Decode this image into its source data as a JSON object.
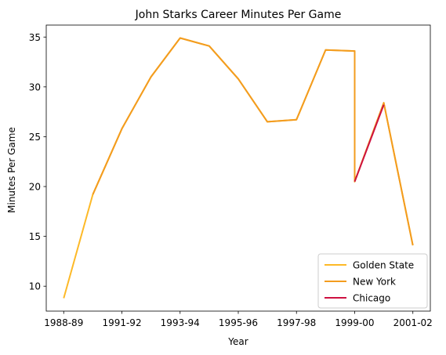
{
  "chart_data": {
    "type": "line",
    "title": "John Starks  Career Minutes Per Game",
    "xlabel": "Year",
    "ylabel": "Minutes Per Game",
    "x_ticks": [
      "1988-89",
      "1991-92",
      "1993-94",
      "1995-96",
      "1997-98",
      "1999-00",
      "2001-02"
    ],
    "x_tick_positions": [
      0,
      2,
      4,
      6,
      8,
      10,
      12
    ],
    "xlim": [
      -0.6,
      12.6
    ],
    "ylim": [
      7.5,
      36.2
    ],
    "y_ticks": [
      10,
      15,
      20,
      25,
      30,
      35
    ],
    "legend_position": "lower-right",
    "grid": false,
    "series": [
      {
        "name": "Golden State",
        "color": "#FDB927",
        "points": [
          [
            0,
            8.8
          ],
          [
            1,
            19.2
          ],
          [
            2,
            25.8
          ],
          [
            3,
            31.0
          ],
          [
            4,
            34.9
          ],
          [
            5,
            34.1
          ],
          [
            6,
            30.8
          ],
          [
            7,
            26.5
          ],
          [
            8,
            26.7
          ],
          [
            9,
            33.7
          ],
          [
            10,
            33.6
          ],
          [
            10,
            20.5
          ],
          [
            11,
            28.4
          ],
          [
            12,
            14.1
          ]
        ]
      },
      {
        "name": "New York",
        "color": "#F39C1F",
        "points": [
          [
            1,
            19.2
          ],
          [
            2,
            25.8
          ],
          [
            3,
            31.0
          ],
          [
            4,
            34.9
          ],
          [
            5,
            34.1
          ],
          [
            6,
            30.8
          ],
          [
            7,
            26.5
          ],
          [
            8,
            26.7
          ],
          [
            9,
            33.7
          ],
          [
            10,
            33.6
          ],
          [
            10,
            20.5
          ],
          [
            11,
            28.4
          ],
          [
            12,
            14.1
          ]
        ]
      },
      {
        "name": "Chicago",
        "color": "#CE1141",
        "points": [
          [
            10,
            20.5
          ],
          [
            11,
            28.2
          ]
        ]
      }
    ]
  }
}
